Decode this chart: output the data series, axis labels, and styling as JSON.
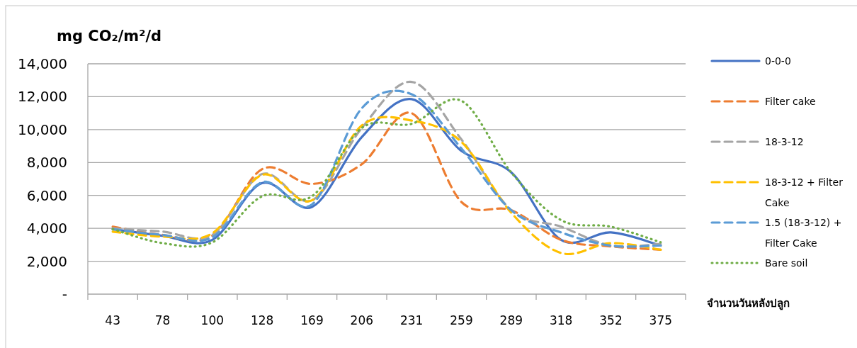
{
  "chart_data": {
    "type": "line",
    "ylabel": "mg CO₂/m²/d",
    "xlabel": "จำนวนวันหลังปลูก",
    "categories": [
      "43",
      "78",
      "100",
      "128",
      "169",
      "206",
      "231",
      "259",
      "289",
      "318",
      "352",
      "375"
    ],
    "ylim": [
      0,
      14000
    ],
    "yticks": [
      {
        "value": 0,
        "label": "-"
      },
      {
        "value": 2000,
        "label": "2,000"
      },
      {
        "value": 4000,
        "label": "4,000"
      },
      {
        "value": 6000,
        "label": "6,000"
      },
      {
        "value": 8000,
        "label": "8,000"
      },
      {
        "value": 10000,
        "label": "10,000"
      },
      {
        "value": 12000,
        "label": "12,000"
      },
      {
        "value": 14000,
        "label": "14,000"
      }
    ],
    "grid": "y",
    "legend": "right",
    "marker": "none",
    "series": [
      {
        "name": "0-0-0",
        "color": "#4472c4",
        "line_style": "solid",
        "values": [
          3950,
          3550,
          3300,
          6750,
          5300,
          9550,
          11850,
          8700,
          7400,
          3300,
          3750,
          2950
        ]
      },
      {
        "name": "Filter cake",
        "color": "#ed7d31",
        "line_style": "dashed",
        "values": [
          4100,
          3600,
          3550,
          7600,
          6700,
          7900,
          11000,
          5600,
          5100,
          3300,
          2900,
          2700
        ]
      },
      {
        "name": "18-3-12",
        "color": "#a5a5a5",
        "line_style": "dashed",
        "values": [
          4000,
          3800,
          3600,
          7300,
          5700,
          10100,
          12900,
          9400,
          5100,
          4100,
          2950,
          3050
        ]
      },
      {
        "name": "18-3-12 + Filter Cake",
        "color": "#ffc000",
        "line_style": "dashed",
        "values": [
          3800,
          3500,
          3700,
          7250,
          5700,
          10250,
          10550,
          9250,
          4950,
          2500,
          3100,
          2700
        ]
      },
      {
        "name": "1.5 (18-3-12) + Filter Cake",
        "color": "#5b9bd5",
        "line_style": "dashed",
        "values": [
          3950,
          3600,
          3450,
          6800,
          5450,
          11300,
          12150,
          8850,
          5100,
          3750,
          2950,
          2950
        ]
      },
      {
        "name": "Bare soil",
        "color": "#70ad47",
        "line_style": "dotted",
        "values": [
          3950,
          3100,
          3150,
          5950,
          5950,
          10100,
          10350,
          11750,
          7400,
          4500,
          4100,
          3150
        ]
      }
    ]
  }
}
